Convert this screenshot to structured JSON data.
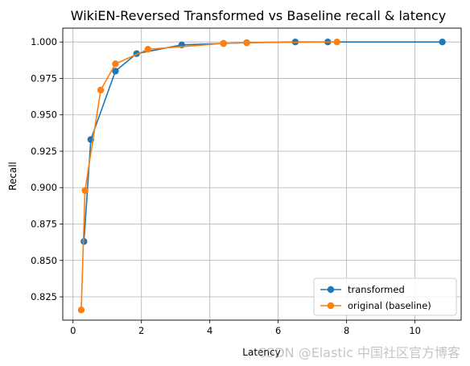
{
  "chart_data": {
    "type": "line",
    "title": "WikiEN-Reversed Transformed vs Baseline recall & latency",
    "xlabel": "Latency",
    "ylabel": "Recall",
    "xlim": [
      -0.3,
      11.35
    ],
    "ylim": [
      0.809,
      1.0095
    ],
    "xticks": [
      0,
      2,
      4,
      6,
      8,
      10
    ],
    "yticks": [
      0.825,
      0.85,
      0.875,
      0.9,
      0.925,
      0.95,
      0.975,
      1.0
    ],
    "ytick_labels": [
      "0.825",
      "0.850",
      "0.875",
      "0.900",
      "0.925",
      "0.950",
      "0.975",
      "1.000"
    ],
    "grid": true,
    "legend_position": "lower-right",
    "series": [
      {
        "name": "transformed",
        "color": "#1f77b4",
        "x": [
          0.32,
          0.52,
          1.24,
          1.86,
          3.18,
          4.4,
          5.08,
          6.5,
          7.45,
          10.8
        ],
        "y": [
          0.863,
          0.933,
          0.98,
          0.992,
          0.998,
          0.999,
          0.9995,
          1.0,
          1.0,
          1.0
        ]
      },
      {
        "name": "original (baseline)",
        "color": "#ff7f0e",
        "x": [
          0.24,
          0.35,
          0.81,
          1.24,
          2.19,
          4.4,
          5.08,
          7.72
        ],
        "y": [
          0.816,
          0.898,
          0.967,
          0.985,
          0.995,
          0.999,
          0.9995,
          1.0
        ]
      }
    ]
  },
  "watermark": "CSDN @Elastic 中国社区官方博客"
}
